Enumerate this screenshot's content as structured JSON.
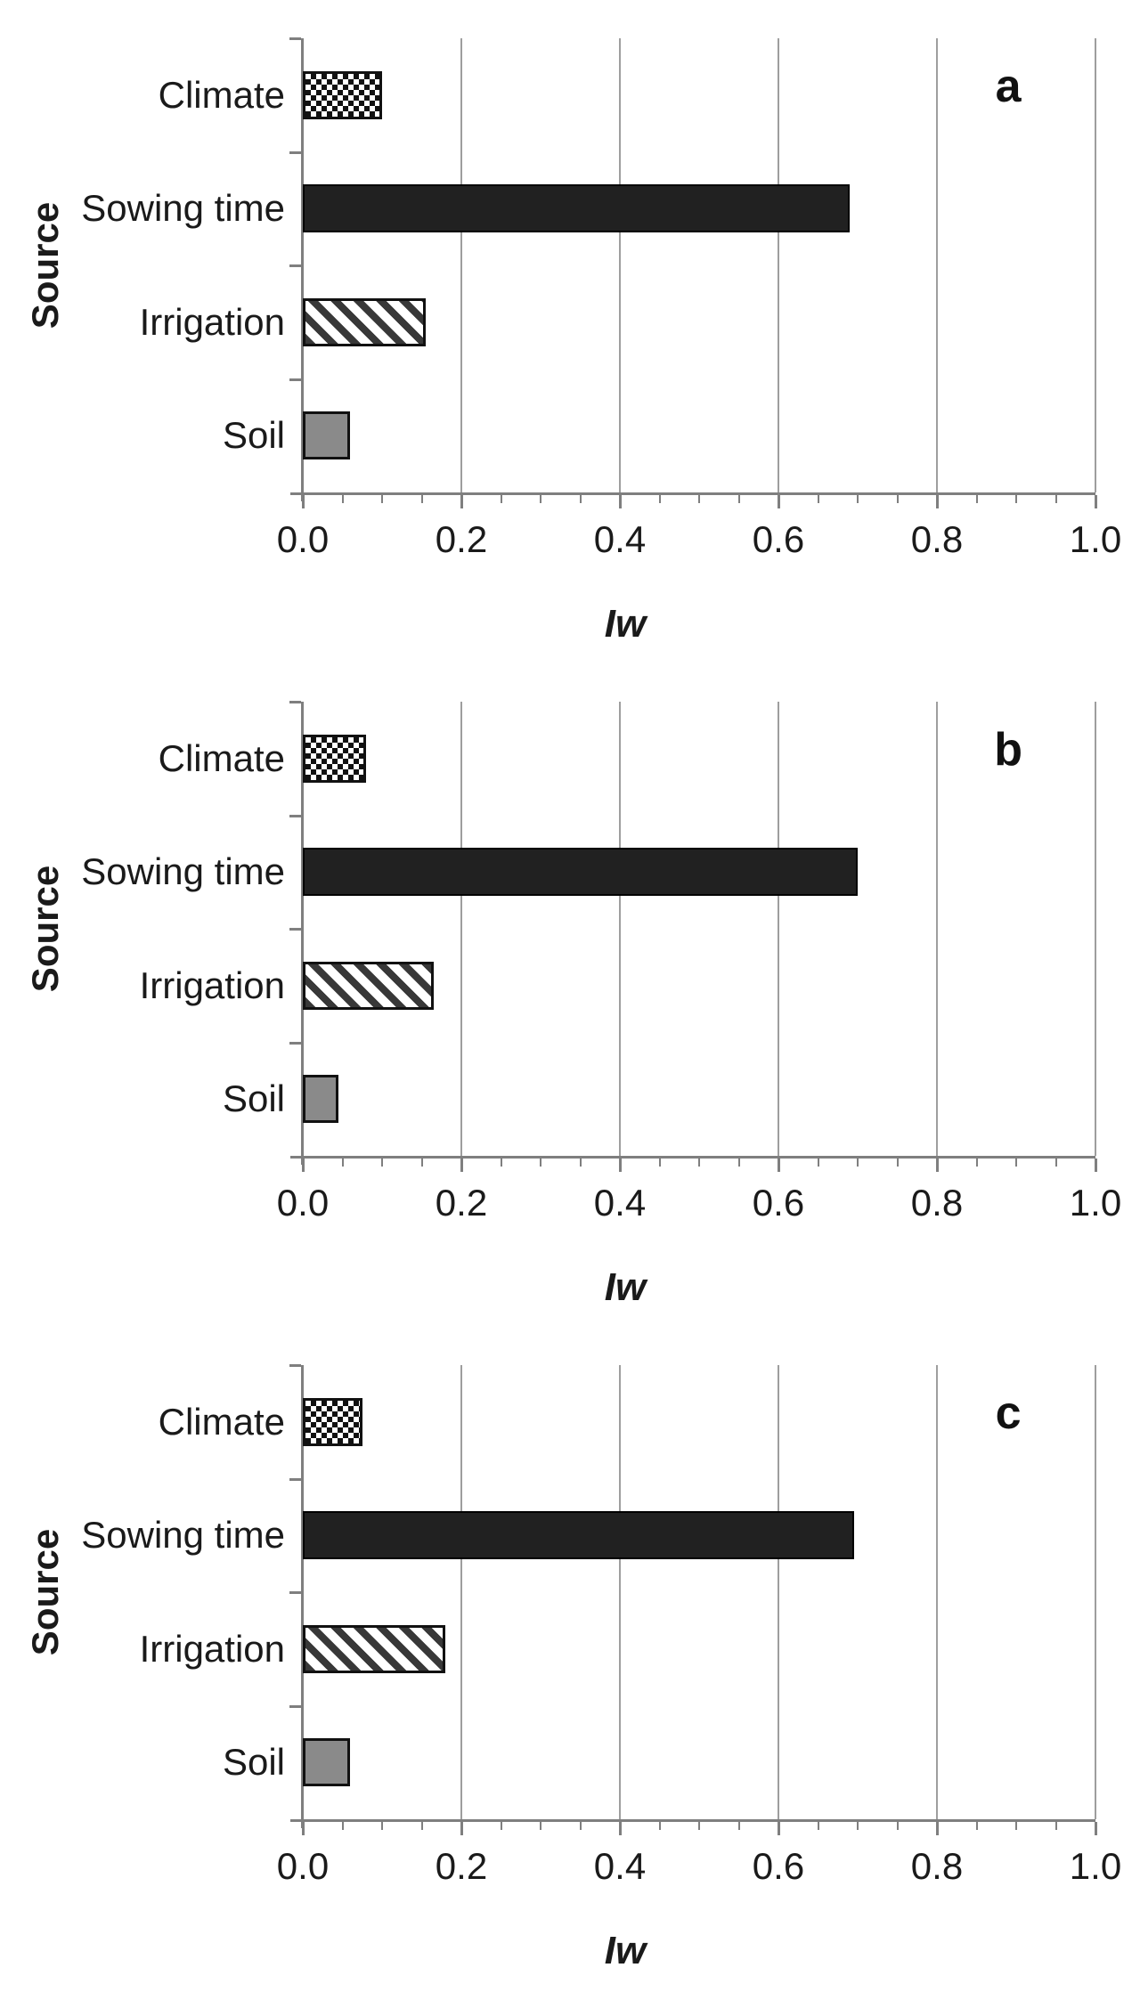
{
  "figure": {
    "y_axis_title": "Source",
    "x_axis_title": "Iw",
    "panel_labels": [
      "a",
      "b",
      "c"
    ]
  },
  "chart_data": [
    {
      "type": "bar",
      "orientation": "horizontal",
      "panel_label": "a",
      "xlabel": "Iw",
      "ylabel": "Source",
      "categories": [
        "Climate",
        "Sowing time",
        "Irrigation",
        "Soil"
      ],
      "values": [
        0.1,
        0.69,
        0.155,
        0.06
      ],
      "xlim": [
        0.0,
        1.0
      ],
      "xticks": [
        0.0,
        0.2,
        0.4,
        0.6,
        0.8,
        1.0
      ],
      "xtick_labels": [
        "0.0",
        "0.2",
        "0.4",
        "0.6",
        "0.8",
        "1.0"
      ],
      "minor_tick_step": 0.05,
      "grid": "vertical-major",
      "legend": "none",
      "bar_patterns": [
        "checkerboard",
        "solid-dark",
        "diagonal-stripes",
        "solid-gray"
      ]
    },
    {
      "type": "bar",
      "orientation": "horizontal",
      "panel_label": "b",
      "xlabel": "Iw",
      "ylabel": "Source",
      "categories": [
        "Climate",
        "Sowing time",
        "Irrigation",
        "Soil"
      ],
      "values": [
        0.08,
        0.7,
        0.165,
        0.045
      ],
      "xlim": [
        0.0,
        1.0
      ],
      "xticks": [
        0.0,
        0.2,
        0.4,
        0.6,
        0.8,
        1.0
      ],
      "xtick_labels": [
        "0.0",
        "0.2",
        "0.4",
        "0.6",
        "0.8",
        "1.0"
      ],
      "minor_tick_step": 0.05,
      "grid": "vertical-major",
      "legend": "none",
      "bar_patterns": [
        "checkerboard",
        "solid-dark",
        "diagonal-stripes",
        "solid-gray"
      ]
    },
    {
      "type": "bar",
      "orientation": "horizontal",
      "panel_label": "c",
      "xlabel": "Iw",
      "ylabel": "Source",
      "categories": [
        "Climate",
        "Sowing time",
        "Irrigation",
        "Soil"
      ],
      "values": [
        0.075,
        0.695,
        0.18,
        0.06
      ],
      "xlim": [
        0.0,
        1.0
      ],
      "xticks": [
        0.0,
        0.2,
        0.4,
        0.6,
        0.8,
        1.0
      ],
      "xtick_labels": [
        "0.0",
        "0.2",
        "0.4",
        "0.6",
        "0.8",
        "1.0"
      ],
      "minor_tick_step": 0.05,
      "grid": "vertical-major",
      "legend": "none",
      "bar_patterns": [
        "checkerboard",
        "solid-dark",
        "diagonal-stripes",
        "solid-gray"
      ]
    }
  ],
  "style_colors": {
    "axis": "#7f7f7f",
    "gridline": "#9e9e9e",
    "text": "#1a1a1a",
    "bar_dark_fill": "#212121",
    "bar_gray_fill": "#8a8a8a",
    "stripe_ink": "#383838",
    "pattern_ink": "#111111"
  }
}
